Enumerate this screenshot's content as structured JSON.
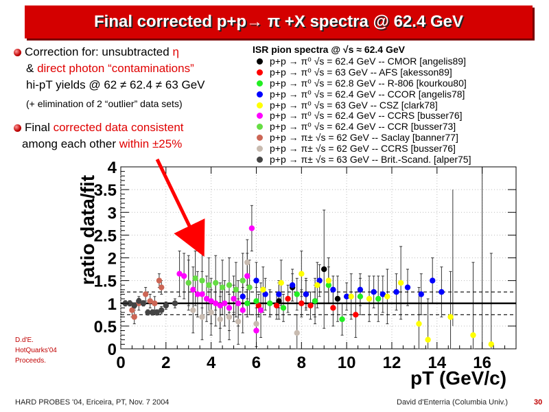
{
  "title": "Final corrected p+p→ π +X spectra @ 62.4 GeV",
  "bullets": {
    "b1_line1_a": "Correction for: unsubtracted ",
    "b1_line1_b": "η",
    "b1_line2_a": "& ",
    "b1_line2_b": "direct photon “contaminations”",
    "b1_line3": "hi-pT yields @ 62 ≠ 62.4 ≠ 63 GeV",
    "b1_line4": "(+ elimination of 2 “outlier” data sets)",
    "b2_line1_a": "Final ",
    "b2_line1_b": "corrected data consistent",
    "b2_line2_a": "among each other ",
    "b2_line2_b": "within ±25%"
  },
  "credit": [
    "D.d'E.",
    "HotQuarks'04",
    "Proceeds."
  ],
  "footer": {
    "left": "HARD PROBES '04, Ericeira, PT, Nov. 7 2004",
    "right": "David d'Enterria (Columbia Univ.)",
    "page": "30"
  },
  "colors": {
    "accent_red": "#d40000",
    "arrow": "#ff0000"
  },
  "legend": {
    "title": "ISR pion spectra @ √s ≈ 62.4 GeV",
    "entries": [
      {
        "label": "p+p → π⁰ √s = 62.4 GeV -- CMOR [angelis89]",
        "color": "#000000"
      },
      {
        "label": "p+p → π⁰ √s = 63 GeV -- AFS [akesson89]",
        "color": "#ff0000"
      },
      {
        "label": "p+p → π⁰ √s = 62.8 GeV -- R-806 [kourkou80]",
        "color": "#22ee22"
      },
      {
        "label": "p+p → π⁰ √s = 62.4 GeV -- CCOR [angelis78]",
        "color": "#0000ff"
      },
      {
        "label": "p+p → π⁰ √s = 63 GeV -- CSZ [clark78]",
        "color": "#ffff00"
      },
      {
        "label": "p+p → π⁰ √s = 62.4 GeV -- CCRS [busser76]",
        "color": "#ff00ff"
      },
      {
        "label": "p+p → π⁰ √s = 62.4 GeV -- CCR [busser73]",
        "color": "#66dd44"
      },
      {
        "label": "p+p → π± √s = 62 GeV -- Saclay [banner77]",
        "color": "#cc6655"
      },
      {
        "label": "p+p → π± √s = 62 GeV -- CCRS [busser76]",
        "color": "#c8bbb0"
      },
      {
        "label": "p+p → π± √s = 63 GeV -- Brit.-Scand. [alper75]",
        "color": "#444444"
      }
    ]
  },
  "chart_data": {
    "type": "scatter",
    "xlabel": "pT (GeV/c)",
    "ylabel": "ratio data/fit",
    "xlim": [
      0,
      17.5
    ],
    "ylim": [
      0,
      4
    ],
    "xticks": [
      "0",
      "2",
      "4",
      "6",
      "8",
      "10",
      "12",
      "14",
      "16"
    ],
    "yticks": [
      "0",
      "0.5",
      "1",
      "1.5",
      "2",
      "2.5",
      "3",
      "3.5",
      "4"
    ],
    "reference_lines": {
      "solid": 1.0,
      "dashed": [
        0.75,
        1.25
      ]
    },
    "series": [
      {
        "color": "#000000",
        "points": [
          [
            7.0,
            1.05,
            0.4
          ],
          [
            7.6,
            1.35,
            0.3
          ],
          [
            8.2,
            1.2,
            0.35
          ],
          [
            8.6,
            1.05,
            0.5
          ],
          [
            9.0,
            1.75,
            1.3
          ],
          [
            9.6,
            1.1,
            0.5
          ]
        ]
      },
      {
        "color": "#ff0000",
        "points": [
          [
            6.1,
            0.95,
            0.25
          ],
          [
            6.9,
            0.95,
            0.3
          ],
          [
            7.4,
            1.1,
            0.3
          ],
          [
            8.0,
            1.0,
            0.3
          ],
          [
            8.4,
            0.95,
            0.3
          ],
          [
            9.4,
            0.9,
            0.4
          ],
          [
            10.4,
            0.75,
            0.5
          ]
        ]
      },
      {
        "color": "#22ee22",
        "points": [
          [
            5.0,
            1.1,
            0.3
          ],
          [
            5.6,
            1.0,
            0.3
          ],
          [
            6.0,
            1.05,
            0.3
          ],
          [
            6.6,
            1.0,
            0.3
          ],
          [
            7.2,
            0.9,
            0.3
          ],
          [
            7.8,
            1.2,
            0.35
          ],
          [
            8.6,
            1.05,
            0.35
          ],
          [
            9.2,
            1.4,
            0.4
          ],
          [
            9.8,
            0.65,
            0.35
          ],
          [
            10.6,
            1.15,
            0.4
          ],
          [
            11.4,
            1.1,
            0.5
          ]
        ]
      },
      {
        "color": "#0000ff",
        "points": [
          [
            5.4,
            1.15,
            0.3
          ],
          [
            6.0,
            1.5,
            0.4
          ],
          [
            6.4,
            1.2,
            0.35
          ],
          [
            7.0,
            1.2,
            0.3
          ],
          [
            7.6,
            1.4,
            0.35
          ],
          [
            8.2,
            1.2,
            0.3
          ],
          [
            8.8,
            1.5,
            0.35
          ],
          [
            9.4,
            1.3,
            0.3
          ],
          [
            10.0,
            1.15,
            0.3
          ],
          [
            10.6,
            1.3,
            0.35
          ],
          [
            11.2,
            1.25,
            0.35
          ],
          [
            11.6,
            1.2,
            0.4
          ],
          [
            12.2,
            1.25,
            0.4
          ],
          [
            12.7,
            1.35,
            0.4
          ],
          [
            13.3,
            1.2,
            0.45
          ],
          [
            13.8,
            1.5,
            0.5
          ],
          [
            14.2,
            1.25,
            0.55
          ]
        ]
      },
      {
        "color": "#ffff00",
        "points": [
          [
            6.3,
            1.3,
            0.5
          ],
          [
            7.1,
            1.45,
            0.5
          ],
          [
            8.0,
            1.65,
            0.5
          ],
          [
            8.7,
            1.4,
            0.5
          ],
          [
            9.2,
            1.5,
            0.5
          ],
          [
            10.2,
            1.15,
            0.5
          ],
          [
            11.0,
            1.1,
            0.5
          ],
          [
            11.8,
            1.15,
            0.6
          ],
          [
            12.4,
            1.45,
            0.8
          ],
          [
            13.2,
            0.55,
            0.8
          ],
          [
            13.6,
            0.2,
            0.9
          ],
          [
            14.6,
            0.7,
            1.0
          ],
          [
            15.6,
            0.3,
            1.6
          ],
          [
            16.4,
            0.1,
            2.0
          ]
        ]
      },
      {
        "color": "#ff00ff",
        "points": [
          [
            2.6,
            1.65,
            0.5
          ],
          [
            2.8,
            1.6,
            0.5
          ],
          [
            3.0,
            1.45,
            0.5
          ],
          [
            3.2,
            1.3,
            0.5
          ],
          [
            3.4,
            1.2,
            0.5
          ],
          [
            3.6,
            1.2,
            0.5
          ],
          [
            3.8,
            1.1,
            0.5
          ],
          [
            4.0,
            1.05,
            0.5
          ],
          [
            4.2,
            1.0,
            0.5
          ],
          [
            4.4,
            0.95,
            0.5
          ],
          [
            4.6,
            1.0,
            0.5
          ],
          [
            4.8,
            0.9,
            0.5
          ],
          [
            5.0,
            1.1,
            0.5
          ],
          [
            5.2,
            1.0,
            0.5
          ],
          [
            5.4,
            0.85,
            0.5
          ],
          [
            5.6,
            1.6,
            0.5
          ],
          [
            5.8,
            2.65,
            0.5
          ],
          [
            6.0,
            0.4,
            0.5
          ],
          [
            6.2,
            0.85,
            0.6
          ]
        ]
      },
      {
        "color": "#66dd44",
        "points": [
          [
            3.0,
            1.45,
            0.6
          ],
          [
            3.3,
            1.55,
            0.6
          ],
          [
            3.6,
            1.5,
            0.6
          ],
          [
            3.9,
            1.4,
            0.6
          ],
          [
            4.2,
            1.45,
            0.6
          ],
          [
            4.5,
            1.35,
            0.6
          ],
          [
            4.8,
            1.4,
            0.6
          ],
          [
            5.1,
            1.3,
            0.6
          ],
          [
            5.4,
            1.5,
            0.6
          ],
          [
            5.7,
            1.35,
            0.6
          ]
        ]
      },
      {
        "color": "#cc6655",
        "points": [
          [
            0.5,
            0.85,
            0.15
          ],
          [
            0.6,
            0.7,
            0.15
          ],
          [
            0.8,
            1.0,
            0.15
          ],
          [
            1.1,
            1.2,
            0.15
          ],
          [
            1.3,
            1.05,
            0.15
          ],
          [
            1.5,
            1.0,
            0.15
          ],
          [
            1.7,
            1.5,
            0.15
          ],
          [
            1.8,
            1.35,
            0.15
          ]
        ]
      },
      {
        "color": "#c8bbb0",
        "points": [
          [
            3.2,
            0.85,
            0.5
          ],
          [
            3.6,
            0.7,
            0.5
          ],
          [
            4.0,
            0.8,
            0.5
          ],
          [
            4.4,
            0.65,
            0.5
          ],
          [
            4.8,
            0.7,
            0.5
          ],
          [
            5.2,
            0.6,
            0.5
          ],
          [
            5.6,
            1.9,
            0.5
          ],
          [
            6.0,
            0.55,
            0.5
          ],
          [
            7.8,
            0.35,
            0.4
          ]
        ]
      },
      {
        "color": "#444444",
        "points": [
          [
            0.2,
            1.0,
            0.06
          ],
          [
            0.4,
            1.0,
            0.06
          ],
          [
            0.6,
            0.95,
            0.06
          ],
          [
            0.8,
            1.05,
            0.06
          ],
          [
            1.0,
            1.0,
            0.06
          ],
          [
            1.2,
            0.8,
            0.06
          ],
          [
            1.4,
            0.8,
            0.06
          ],
          [
            1.6,
            0.8,
            0.06
          ],
          [
            1.8,
            0.85,
            0.08
          ],
          [
            2.0,
            0.95,
            0.08
          ],
          [
            2.4,
            1.0,
            0.1
          ]
        ]
      }
    ],
    "extra_error_bars": [
      [
        14.7,
        2.0,
        1.5
      ],
      [
        16.0,
        2.0,
        2.0
      ]
    ]
  }
}
